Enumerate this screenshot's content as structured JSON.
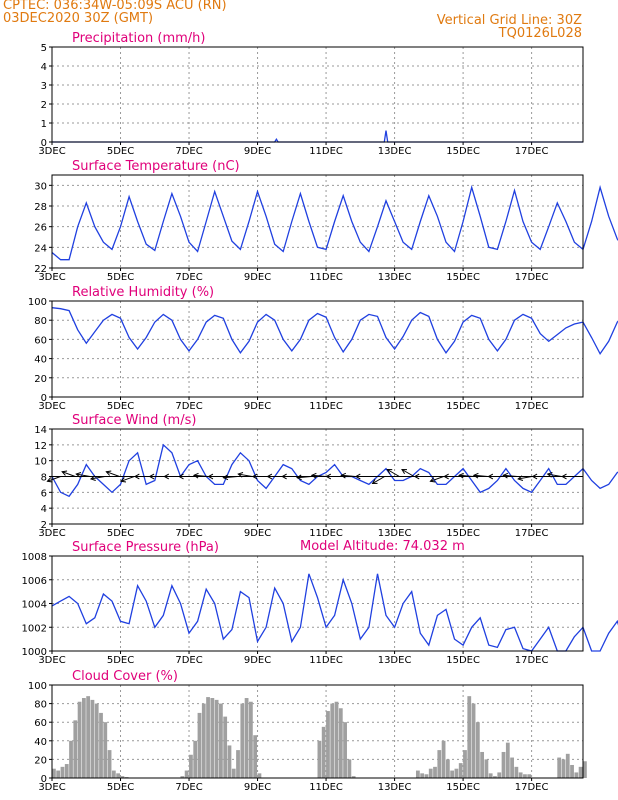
{
  "header": {
    "line1": "CPTEC:   036:34W-05:09S   ACU (RN)",
    "line2": "03DEC2020 30Z (GMT)",
    "grid_note": "Vertical Grid Line: 30Z",
    "code": "TQ0126L028",
    "model_altitude": "Model Altitude: 74.032 m"
  },
  "colors": {
    "header": "#e07a10",
    "title": "#e0007a",
    "line": "#2040e0",
    "cloud": "#a0a0a0",
    "wind_arrow": "#000000"
  },
  "chart_data": [
    {
      "type": "line",
      "title": "Precipitation (mm/h)",
      "xlabel": "",
      "ylabel": "",
      "x_ticks": [
        "3DEC",
        "5DEC",
        "7DEC",
        "9DEC",
        "11DEC",
        "13DEC",
        "15DEC",
        "17DEC"
      ],
      "xlim_days": [
        0,
        15.5
      ],
      "ylim": [
        0,
        5
      ],
      "yticks": [
        0,
        1,
        2,
        3,
        4,
        5
      ],
      "grid": true,
      "series": [
        {
          "x": [
            0,
            6.5,
            6.55,
            6.6,
            9.7,
            9.75,
            9.8,
            15.5
          ],
          "values": [
            0,
            0,
            0.15,
            0,
            0,
            0.6,
            0,
            0
          ]
        }
      ]
    },
    {
      "type": "line",
      "title": "Surface Temperature (nC)",
      "xlabel": "",
      "ylabel": "",
      "x_ticks": [
        "3DEC",
        "5DEC",
        "7DEC",
        "9DEC",
        "11DEC",
        "13DEC",
        "15DEC",
        "17DEC"
      ],
      "xlim_days": [
        0,
        15.5
      ],
      "ylim": [
        22,
        31
      ],
      "yticks": [
        22,
        24,
        26,
        28,
        30
      ],
      "grid": true,
      "series": [
        {
          "x_start_day": 0,
          "step_days": 0.25,
          "values": [
            23.5,
            22.8,
            22.8,
            26.0,
            28.3,
            26.0,
            24.5,
            23.8,
            26.0,
            28.9,
            26.5,
            24.3,
            23.7,
            26.5,
            29.2,
            27.0,
            24.5,
            23.6,
            26.5,
            29.4,
            27.0,
            24.6,
            23.8,
            26.5,
            29.4,
            27.0,
            24.3,
            23.6,
            26.5,
            29.2,
            26.5,
            24.0,
            23.8,
            26.5,
            29.0,
            26.5,
            24.5,
            23.6,
            26.0,
            28.5,
            26.5,
            24.5,
            23.8,
            26.5,
            29.0,
            27.0,
            24.5,
            23.6,
            26.5,
            29.8,
            27.0,
            24.0,
            23.8,
            26.5,
            29.5,
            26.5,
            24.5,
            23.8,
            26.0,
            28.3,
            26.5,
            24.5,
            23.8,
            26.5,
            29.8,
            27.0,
            24.8,
            23.8,
            26.5,
            29.6,
            27.0,
            24.5,
            23.8,
            26.0,
            29.0,
            27.0,
            24.5,
            23.8,
            26.0,
            29.0,
            26.5,
            24.5,
            24.0,
            26.0,
            28.5,
            26.3
          ]
        }
      ]
    },
    {
      "type": "line",
      "title": "Relative Humidity (%)",
      "xlabel": "",
      "ylabel": "",
      "x_ticks": [
        "3DEC",
        "5DEC",
        "7DEC",
        "9DEC",
        "11DEC",
        "13DEC",
        "15DEC",
        "17DEC"
      ],
      "xlim_days": [
        0,
        15.5
      ],
      "ylim": [
        0,
        100
      ],
      "yticks": [
        0,
        20,
        40,
        60,
        80,
        100
      ],
      "grid": true,
      "series": [
        {
          "x_start_day": 0,
          "step_days": 0.25,
          "values": [
            93,
            92,
            90,
            70,
            56,
            68,
            80,
            86,
            82,
            62,
            50,
            62,
            78,
            86,
            80,
            60,
            48,
            60,
            78,
            85,
            82,
            60,
            46,
            58,
            78,
            86,
            80,
            60,
            48,
            60,
            80,
            87,
            83,
            62,
            47,
            60,
            80,
            86,
            84,
            62,
            50,
            63,
            80,
            88,
            84,
            60,
            46,
            58,
            78,
            85,
            82,
            60,
            48,
            60,
            80,
            86,
            82,
            66,
            58,
            65,
            72,
            76,
            78,
            62,
            45,
            58,
            78,
            88,
            83,
            60,
            46,
            60,
            80,
            88,
            84,
            63,
            50,
            62,
            80,
            86,
            84,
            64,
            54,
            60,
            72,
            70
          ]
        }
      ]
    },
    {
      "type": "line",
      "title": "Surface Wind (m/s)",
      "xlabel": "",
      "ylabel": "",
      "x_ticks": [
        "3DEC",
        "5DEC",
        "7DEC",
        "9DEC",
        "11DEC",
        "13DEC",
        "15DEC",
        "17DEC"
      ],
      "xlim_days": [
        0,
        15.5
      ],
      "ylim": [
        2,
        14
      ],
      "yticks": [
        2,
        4,
        6,
        8,
        10,
        12,
        14
      ],
      "grid": true,
      "series": [
        {
          "x_start_day": 0,
          "step_days": 0.25,
          "values": [
            8,
            6,
            5.5,
            7,
            9.5,
            8,
            7,
            6,
            7,
            10,
            11,
            7,
            7.5,
            12,
            11,
            8,
            9.5,
            10,
            8,
            7,
            7,
            9.5,
            11,
            10,
            7.5,
            6.5,
            8,
            9.5,
            9,
            7.5,
            7,
            8,
            8.5,
            9.5,
            8,
            8,
            7.5,
            7,
            8,
            9,
            7.5,
            7.5,
            8,
            9,
            8.5,
            7,
            7,
            8,
            9,
            7.5,
            6,
            6.5,
            7.5,
            9,
            7.5,
            6.5,
            6,
            7.5,
            9,
            7,
            7,
            8,
            9,
            7.5,
            6.5,
            7,
            8.5,
            9,
            7,
            6.5,
            7,
            7.5,
            8.5,
            9,
            7,
            7,
            8.5,
            10,
            7.5,
            7,
            10,
            7.5,
            5,
            3.5,
            6.5,
            7
          ]
        }
      ]
    },
    {
      "type": "line",
      "title": "Surface Pressure (hPa)",
      "xlabel": "",
      "ylabel": "",
      "x_ticks": [
        "3DEC",
        "5DEC",
        "7DEC",
        "9DEC",
        "11DEC",
        "13DEC",
        "15DEC",
        "17DEC"
      ],
      "xlim_days": [
        0,
        15.5
      ],
      "ylim": [
        1000,
        1008
      ],
      "yticks": [
        1000,
        1002,
        1004,
        1006,
        1008
      ],
      "grid": true,
      "series": [
        {
          "x_start_day": 0,
          "step_days": 0.25,
          "values": [
            1003.8,
            1004.2,
            1004.6,
            1004.0,
            1002.3,
            1002.8,
            1004.8,
            1004.2,
            1002.5,
            1002.3,
            1005.5,
            1004.2,
            1002.0,
            1003.0,
            1005.5,
            1004.0,
            1001.5,
            1002.5,
            1005.2,
            1004.0,
            1001.0,
            1001.8,
            1005.0,
            1004.5,
            1000.8,
            1002.0,
            1005.3,
            1004.0,
            1000.8,
            1002.0,
            1006.5,
            1004.5,
            1002.0,
            1003.0,
            1006.0,
            1004.0,
            1001.0,
            1002.0,
            1006.5,
            1003.0,
            1002.0,
            1004.0,
            1005.0,
            1001.5,
            1000.5,
            1003.0,
            1003.5,
            1001.0,
            1000.5,
            1002.0,
            1002.8,
            1000.5,
            1000.3,
            1001.8,
            1002.0,
            1000.2,
            1000.0,
            1001.0,
            1002.0,
            1000.0,
            1000.0,
            1001.2,
            1002.0,
            1000.0,
            1000.0,
            1001.5,
            1002.5,
            1000.3,
            1000.0,
            1001.5,
            1002.5,
            1000.2,
            1000.0,
            1001.0,
            1002.0,
            1000.0,
            1000.0,
            1001.0,
            1002.3,
            1000.5,
            1000.0,
            1001.0,
            1001.8,
            1000.0,
            1000.0,
            1000.8
          ]
        }
      ]
    },
    {
      "type": "bar",
      "title": "Cloud Cover (%)",
      "xlabel": "",
      "ylabel": "",
      "x_ticks": [
        "3DEC",
        "5DEC",
        "7DEC",
        "9DEC",
        "11DEC",
        "13DEC",
        "15DEC",
        "17DEC"
      ],
      "xlim_days": [
        0,
        15.5
      ],
      "ylim": [
        0,
        100
      ],
      "yticks": [
        0,
        20,
        40,
        60,
        80,
        100
      ],
      "grid": true,
      "series": [
        {
          "x_start_day": 0,
          "step_days": 0.125,
          "values": [
            10,
            8,
            12,
            15,
            40,
            62,
            82,
            86,
            88,
            84,
            80,
            70,
            60,
            30,
            8,
            5,
            2,
            1,
            0,
            0,
            0,
            0,
            0,
            0,
            0,
            0,
            0,
            0,
            0,
            0,
            2,
            8,
            25,
            40,
            70,
            80,
            87,
            86,
            84,
            80,
            66,
            35,
            10,
            30,
            80,
            86,
            82,
            46,
            5,
            0,
            0,
            0,
            0,
            0,
            0,
            0,
            0,
            0,
            0,
            0,
            0,
            0,
            40,
            55,
            72,
            80,
            82,
            75,
            60,
            20,
            2,
            0,
            0,
            0,
            0,
            0,
            0,
            0,
            0,
            0,
            0,
            0,
            0,
            0,
            0,
            8,
            5,
            4,
            10,
            12,
            30,
            40,
            20,
            8,
            10,
            16,
            30,
            88,
            80,
            60,
            28,
            20,
            5,
            2,
            6,
            28,
            38,
            22,
            12,
            6,
            4,
            4,
            0,
            0,
            0,
            0,
            0,
            0,
            22,
            20,
            26,
            14,
            6,
            12,
            18,
            4,
            0,
            0,
            4,
            16,
            28,
            36,
            30,
            26,
            36,
            52,
            72,
            80,
            82,
            84,
            86,
            86,
            84,
            86,
            88,
            88,
            86,
            87,
            86,
            87
          ]
        }
      ]
    }
  ]
}
